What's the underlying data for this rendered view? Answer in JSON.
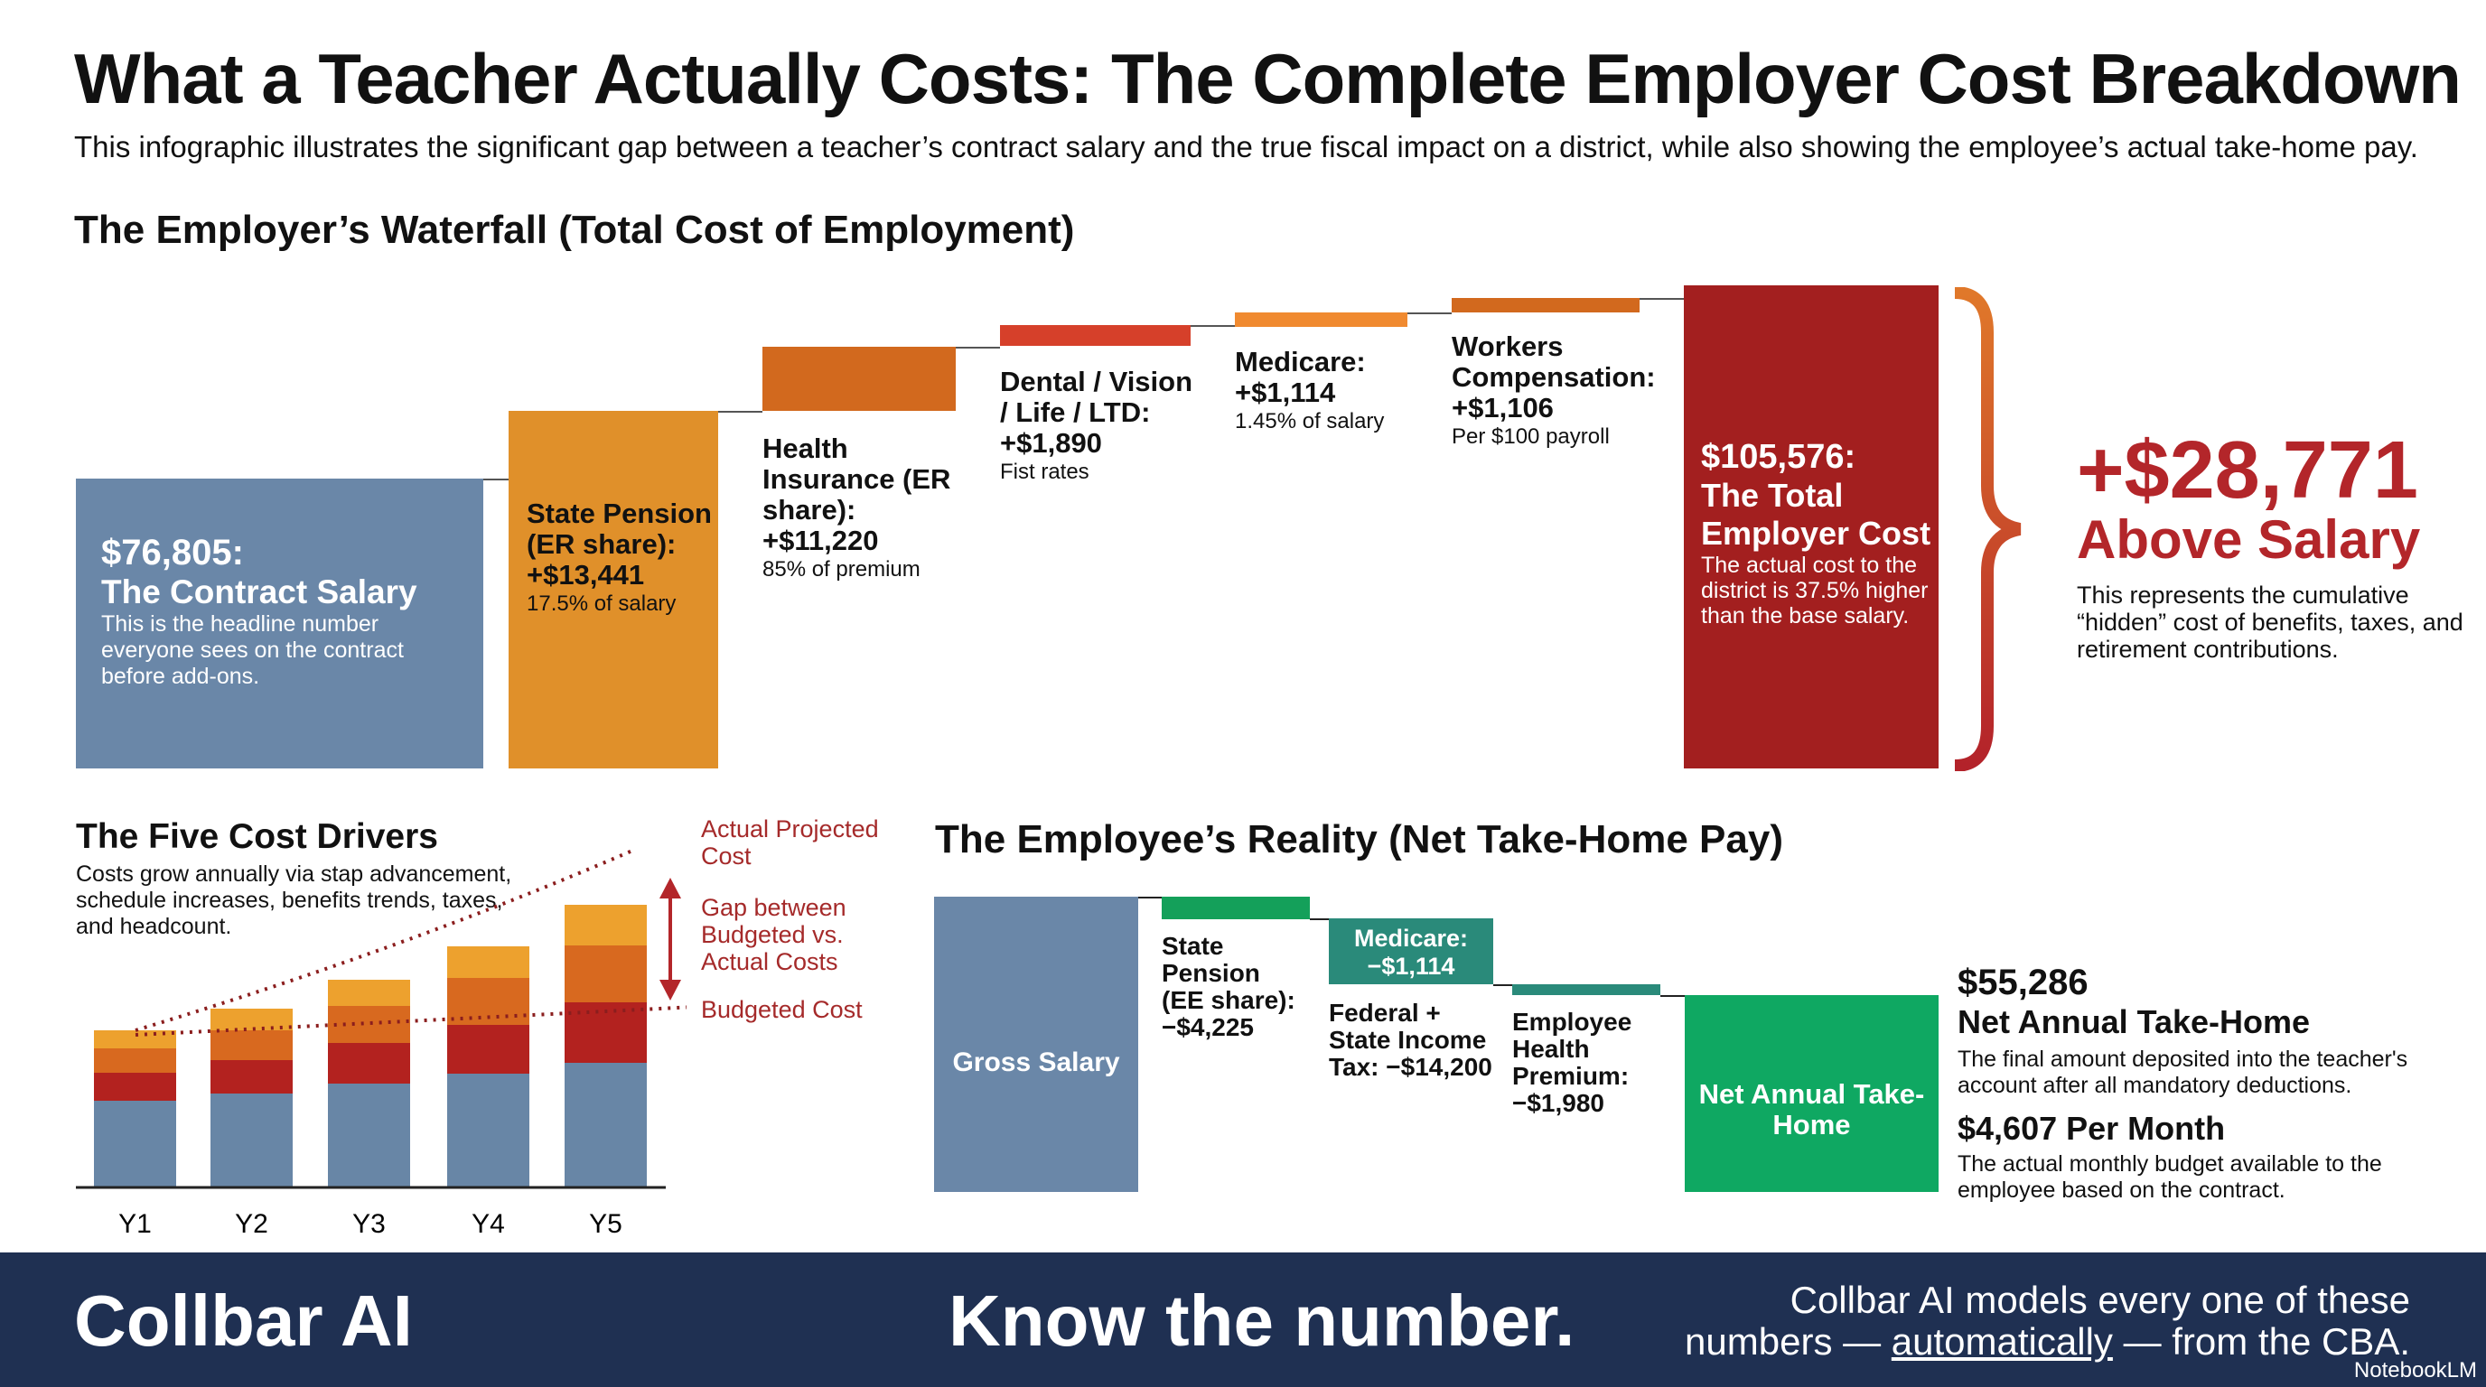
{
  "title": "What a Teacher Actually Costs: The Complete Employer Cost Breakdown",
  "subtitle": "This infographic illustrates the significant gap between a teacher’s contract salary and the true fiscal impact on a district, while also showing the employee’s actual take-home pay.",
  "employer": {
    "heading": "The Employer’s Waterfall (Total Cost of Employment)",
    "salary": {
      "value": "$76,805:",
      "label": "The Contract Salary",
      "desc": "This is the headline number everyone sees on the contract before add-ons."
    },
    "pension": {
      "label": "State Pension (ER share):",
      "value": "+$13,441",
      "note": "17.5% of salary"
    },
    "health": {
      "label": "Health Insurance (ER share):",
      "value": "+$11,220",
      "note": "85% of premium"
    },
    "dental": {
      "label": "Dental / Vision / Life / LTD:",
      "value": "+$1,890",
      "note": "Fist rates"
    },
    "medicare": {
      "label": "Medicare:",
      "value": "+$1,114",
      "note": "1.45% of salary"
    },
    "workers": {
      "label": "Workers Compensation:",
      "value": "+$1,106",
      "note": "Per $100 payroll"
    },
    "total": {
      "value": "$105,576:",
      "label": "The Total Employer Cost",
      "desc": "The actual cost to the district is 37.5% higher than the base salary."
    },
    "above": {
      "value": "+$28,771",
      "label": "Above Salary",
      "desc": "This represents the cumulative “hidden” cost of benefits, taxes, and retirement contributions."
    }
  },
  "drivers": {
    "heading": "The Five Cost Drivers",
    "desc": "Costs grow annually via stap advancement, schedule increases, benefits trends, taxes, and headcount.",
    "ann_actual": "Actual Projected Cost",
    "ann_gap": "Gap between Budgeted vs. Actual Costs",
    "ann_budget": "Budgeted Cost"
  },
  "chart_data": {
    "type": "bar",
    "stacked": true,
    "categories": [
      "Y1",
      "Y2",
      "Y3",
      "Y4",
      "Y5"
    ],
    "series": [
      {
        "color": "#6886a6",
        "values": [
          96,
          104,
          115,
          126,
          138
        ]
      },
      {
        "color": "#b3221f",
        "values": [
          31,
          37,
          45,
          54,
          67
        ]
      },
      {
        "color": "#d8691f",
        "values": [
          27,
          33,
          41,
          52,
          63
        ]
      },
      {
        "color": "#eda12e",
        "values": [
          20,
          24,
          29,
          35,
          45
        ]
      }
    ],
    "lines": [
      {
        "name": "Actual Projected Cost",
        "style": "dotted"
      },
      {
        "name": "Budgeted Cost",
        "style": "dotted"
      }
    ],
    "grid": false
  },
  "employee": {
    "heading": "The Employee’s Reality (Net Take-Home Pay)",
    "gross": "Gross Salary",
    "pension": "State Pension (EE share): −$4,225",
    "medicare_label": "Medicare:",
    "medicare_value": "−$1,114",
    "tax": "Federal + State Income Tax: −$14,200",
    "premium": "Employee Health Premium: −$1,980",
    "net_bar": "Net Annual Take-Home",
    "net_value": "$55,286",
    "net_label": "Net Annual Take-Home",
    "net_desc": "The final amount deposited into the teacher's account after all mandatory deductions.",
    "monthly": "$4,607 Per Month",
    "monthly_desc": "The actual monthly budget available to the employee based on the contract."
  },
  "footer": {
    "brand": "Collbar AI",
    "tagline": "Know the number.",
    "right_1": "Collbar AI models every one of these",
    "right_2a": "numbers — ",
    "right_2b": "automatically",
    "right_2c": " — from the CBA.",
    "watermark": "NotebookLM"
  }
}
